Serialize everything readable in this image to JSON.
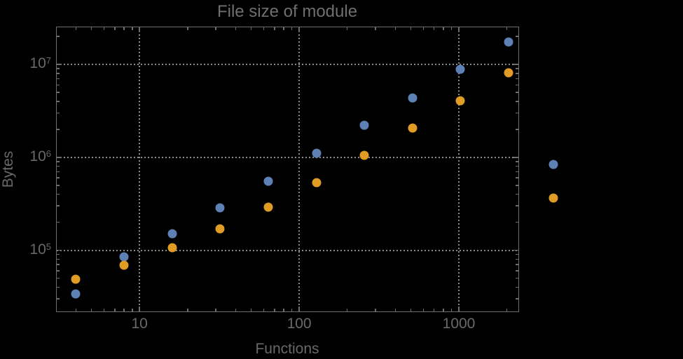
{
  "chart_data": {
    "type": "scatter",
    "title": "File size of module",
    "xlabel": "Functions",
    "ylabel": "Bytes",
    "x_scale": "log",
    "y_scale": "log",
    "grid": "dotted",
    "legend": "none",
    "xlim": [
      3.03,
      2360
    ],
    "ylim": [
      22000,
      25000000
    ],
    "x_ticks": [
      {
        "value": 10,
        "label": "10"
      },
      {
        "value": 100,
        "label": "100"
      },
      {
        "value": 1000,
        "label": "1000"
      }
    ],
    "y_ticks": [
      {
        "value": 100000,
        "base": "10",
        "exp": "5"
      },
      {
        "value": 1000000,
        "base": "10",
        "exp": "6"
      },
      {
        "value": 10000000,
        "base": "10",
        "exp": "7"
      }
    ],
    "note": "last data points of each series fall outside the plot frame on the right",
    "series": [
      {
        "name": "series-blue",
        "color": "#5E81B5",
        "points": [
          [
            4,
            34000
          ],
          [
            8,
            85000
          ],
          [
            16,
            151000
          ],
          [
            32,
            288000
          ],
          [
            64,
            548000
          ],
          [
            128,
            1100000
          ],
          [
            256,
            2200000
          ],
          [
            512,
            4380000
          ],
          [
            1024,
            8770000
          ],
          [
            2048,
            17300000
          ],
          [
            3900,
            840000
          ]
        ]
      },
      {
        "name": "series-orange",
        "color": "#E09C24",
        "points": [
          [
            4,
            48500
          ],
          [
            8,
            69300
          ],
          [
            16,
            106000
          ],
          [
            32,
            170000
          ],
          [
            64,
            290000
          ],
          [
            128,
            538000
          ],
          [
            256,
            1040000
          ],
          [
            512,
            2060000
          ],
          [
            1024,
            4080000
          ],
          [
            2048,
            8040000
          ],
          [
            3900,
            363000
          ]
        ]
      }
    ]
  },
  "colors": {
    "background": "#000000",
    "frame": "#6e6e6e",
    "grid": "#8a8a8a",
    "text": "#696969"
  }
}
